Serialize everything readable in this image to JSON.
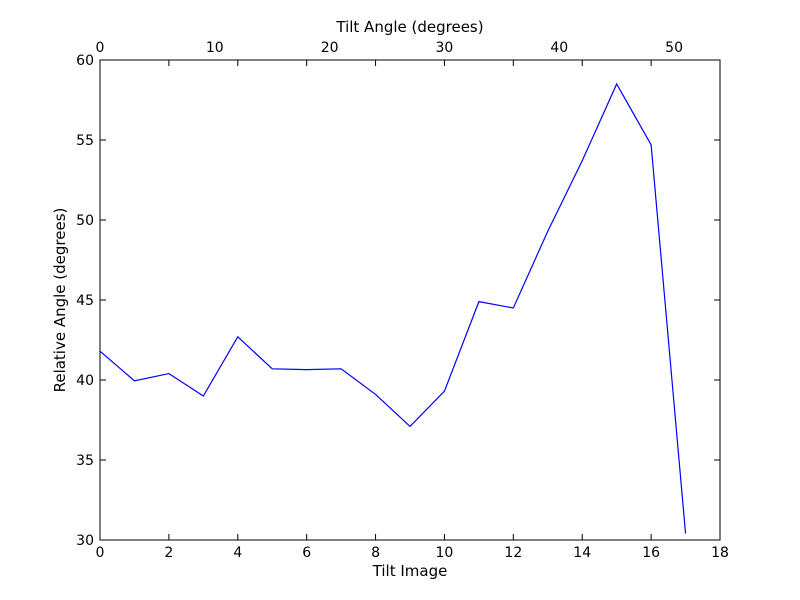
{
  "chart_data": {
    "type": "line",
    "xlabel": "Tilt Image",
    "ylabel": "Relative Angle (degrees)",
    "top_xlabel": "Tilt Angle (degrees)",
    "xlim": [
      0,
      18
    ],
    "ylim": [
      30,
      60
    ],
    "top_xlim": [
      0,
      54
    ],
    "x_ticks": [
      0,
      2,
      4,
      6,
      8,
      10,
      12,
      14,
      16,
      18
    ],
    "y_ticks": [
      30,
      35,
      40,
      45,
      50,
      55,
      60
    ],
    "top_x_ticks": [
      0,
      10,
      20,
      30,
      40,
      50
    ],
    "grid": false,
    "colors": {
      "line": "#0000ff",
      "axes": "#000000"
    },
    "series": [
      {
        "x": [
          0,
          1,
          2,
          3,
          4,
          5,
          6,
          7,
          8,
          9,
          10,
          11,
          12,
          13,
          14,
          15,
          16,
          17
        ],
        "values": [
          41.8,
          39.95,
          40.4,
          39.0,
          42.7,
          40.7,
          40.65,
          40.7,
          39.1,
          37.1,
          39.3,
          44.9,
          44.5,
          49.3,
          53.7,
          58.5,
          54.7,
          30.4
        ]
      }
    ]
  }
}
